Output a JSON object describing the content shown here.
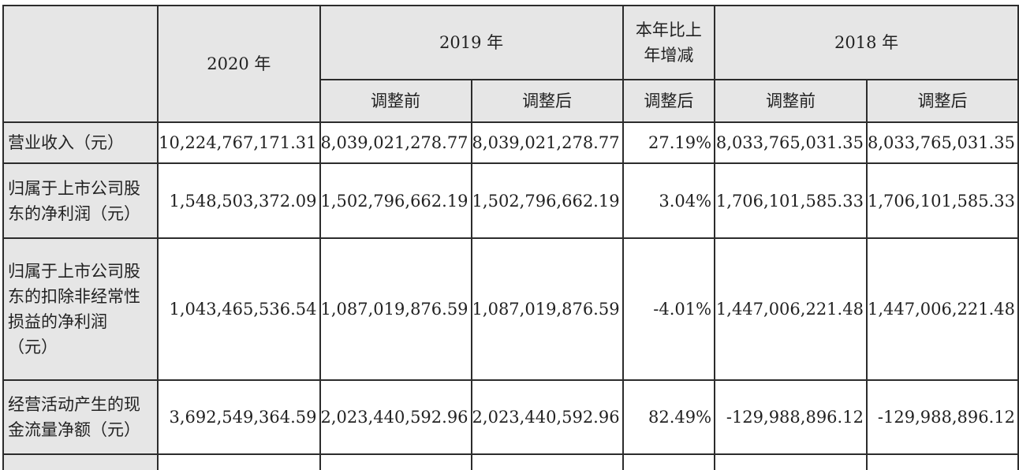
{
  "header": {
    "col_2020": "2020 年",
    "col_2019": "2019 年",
    "col_change": [
      "本年比上",
      "年增减"
    ],
    "col_2018": "2018 年",
    "sub_before": "调整前",
    "sub_after": "调整后",
    "sub_change_after": "调整后",
    "sub_before_2018": "调整前",
    "sub_after_2018": "调整后"
  },
  "rows": [
    {
      "label": [
        "营业收入（元）"
      ],
      "v2020": "10,224,767,171.31",
      "v2019_before": "8,039,021,278.77",
      "v2019_after": "8,039,021,278.77",
      "change": "27.19%",
      "v2018_before": "8,033,765,031.35",
      "v2018_after": "8,033,765,031.35"
    },
    {
      "label": [
        "归属于上市公司股",
        "东的净利润（元）"
      ],
      "v2020": "1,548,503,372.09",
      "v2019_before": "1,502,796,662.19",
      "v2019_after": "1,502,796,662.19",
      "change": "3.04%",
      "v2018_before": "1,706,101,585.33",
      "v2018_after": "1,706,101,585.33"
    },
    {
      "label": [
        "归属于上市公司股",
        "东的扣除非经常性",
        "损益的净利润",
        "（元）"
      ],
      "v2020": "1,043,465,536.54",
      "v2019_before": "1,087,019,876.59",
      "v2019_after": "1,087,019,876.59",
      "change": "-4.01%",
      "v2018_before": "1,447,006,221.48",
      "v2018_after": "1,447,006,221.48"
    },
    {
      "label": [
        "经营活动产生的现",
        "金流量净额（元）"
      ],
      "v2020": "3,692,549,364.59",
      "v2019_before": "2,023,440,592.96",
      "v2019_after": "2,023,440,592.96",
      "change": "82.49%",
      "v2018_before": "-129,988,896.12",
      "v2018_after": "-129,988,896.12"
    }
  ]
}
